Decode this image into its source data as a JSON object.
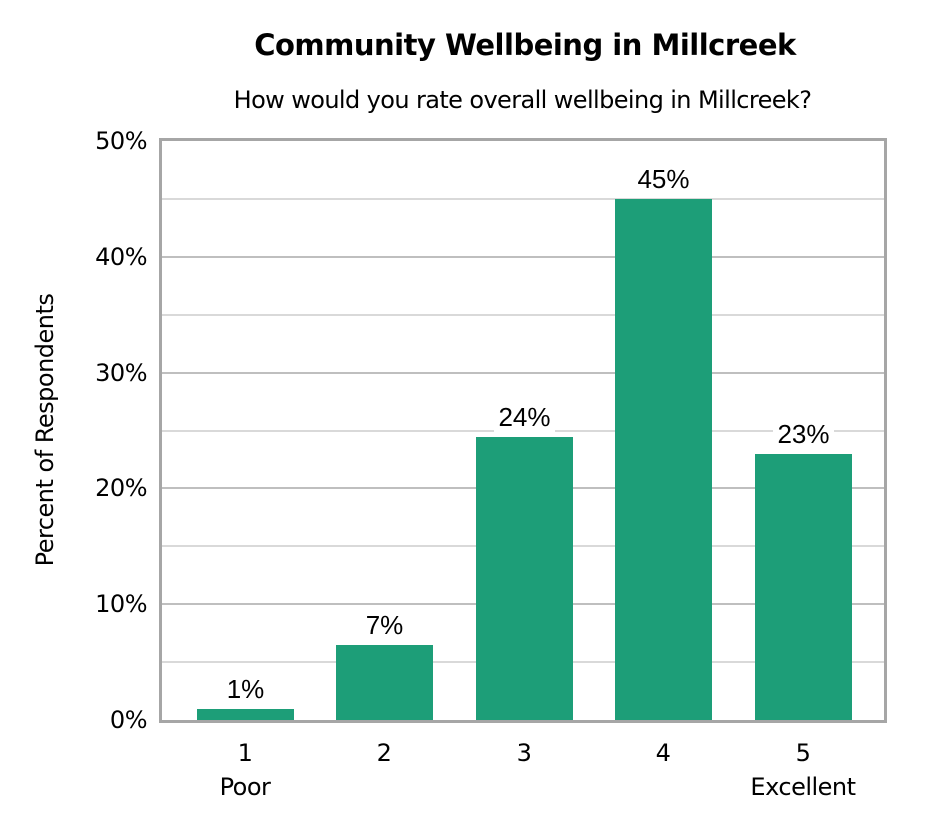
{
  "chart": {
    "title": "Community Wellbeing in Millcreek",
    "subtitle": "How would you rate overall wellbeing in Millcreek?",
    "ylabel": "Percent of Respondents",
    "bar_color": "#1d9e78",
    "y_ticks": [
      "0%",
      "10%",
      "20%",
      "30%",
      "40%",
      "50%"
    ],
    "x_ticks": [
      {
        "num": "1",
        "label": "Poor"
      },
      {
        "num": "2",
        "label": ""
      },
      {
        "num": "3",
        "label": ""
      },
      {
        "num": "4",
        "label": ""
      },
      {
        "num": "5",
        "label": "Excellent"
      }
    ],
    "bars": [
      {
        "category": "1",
        "value": 1,
        "height": 0.95,
        "label": "1%"
      },
      {
        "category": "2",
        "value": 7,
        "height": 6.5,
        "label": "7%"
      },
      {
        "category": "3",
        "value": 24,
        "height": 24.4,
        "label": "24%"
      },
      {
        "category": "4",
        "value": 45,
        "height": 45,
        "label": "45%"
      },
      {
        "category": "5",
        "value": 23,
        "height": 23,
        "label": "23%"
      }
    ]
  },
  "chart_data": {
    "type": "bar",
    "title": "Community Wellbeing in Millcreek",
    "subtitle": "How would you rate overall wellbeing in Millcreek?",
    "categories": [
      "1 Poor",
      "2",
      "3",
      "4",
      "5 Excellent"
    ],
    "values": [
      1,
      7,
      24,
      45,
      23
    ],
    "data_labels": [
      "1%",
      "7%",
      "24%",
      "45%",
      "23%"
    ],
    "xlabel": "",
    "ylabel": "Percent of Respondents",
    "ylim": [
      0,
      50
    ],
    "yticks": [
      "0%",
      "10%",
      "20%",
      "30%",
      "40%",
      "50%"
    ],
    "grid": true,
    "legend": "none",
    "color": "#1d9e78"
  }
}
